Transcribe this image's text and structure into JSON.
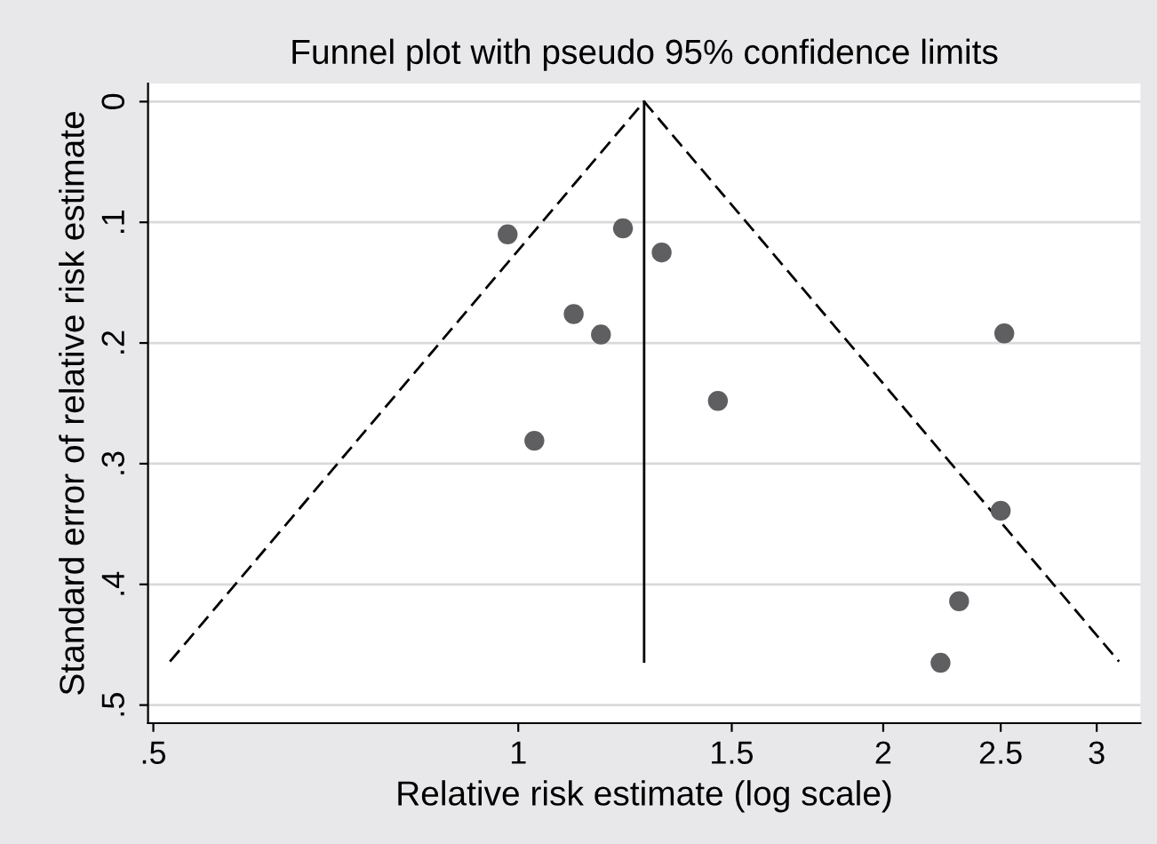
{
  "chart_data": {
    "type": "scatter",
    "title": "Funnel plot with pseudo 95% confidence limits",
    "xlabel": "Relative risk estimate (log scale)",
    "ylabel": "Standard error of relative risk estimate",
    "log": "x",
    "xlim": [
      0.495,
      3.26
    ],
    "ylim": [
      0.515,
      -0.015
    ],
    "xticks": [
      {
        "value": 0.5,
        "label": ".5"
      },
      1,
      {
        "value": 1.5,
        "label": "1.5"
      },
      2,
      {
        "value": 2.5,
        "label": "2.5"
      },
      3
    ],
    "yticks": [
      0,
      {
        "value": 0.1,
        "label": ".1"
      },
      {
        "value": 0.2,
        "label": ".2"
      },
      {
        "value": 0.3,
        "label": ".3"
      },
      {
        "value": 0.4,
        "label": ".4"
      },
      {
        "value": 0.5,
        "label": ".5"
      }
    ],
    "grid": "y",
    "series": [
      {
        "type": "line",
        "color": "#000000",
        "line_style": "dashed",
        "marker": "none",
        "x": [
          0.516,
          1.27,
          3.13
        ],
        "values": [
          0.464,
          0,
          0.464
        ]
      },
      {
        "type": "line",
        "color": "#000000",
        "line_style": "solid",
        "marker": "none",
        "x": [
          1.27,
          1.27
        ],
        "values": [
          0,
          0.464
        ]
      },
      {
        "color": "#5f5f62",
        "marker": "circle",
        "x": [
          0.98,
          1.22,
          1.313,
          1.111,
          1.17,
          2.517,
          1.461,
          1.031,
          2.5,
          2.31,
          2.23
        ],
        "values": [
          0.11,
          0.105,
          0.125,
          0.176,
          0.193,
          0.192,
          0.248,
          0.281,
          0.339,
          0.414,
          0.465
        ]
      }
    ]
  }
}
